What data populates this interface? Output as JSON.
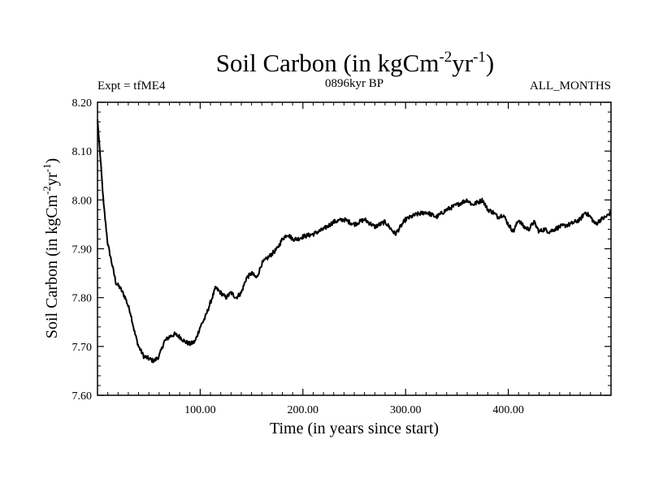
{
  "chart_data": {
    "type": "line",
    "title_main": "Soil Carbon (in kgCm",
    "title_sup1": "-2",
    "title_mid": "yr",
    "title_sup2": "-1",
    "title_end": ")",
    "subtitle_left": "Expt = tfME4",
    "subtitle_center": "0896kyr BP",
    "subtitle_right": "ALL_MONTHS",
    "xlabel": "Time (in years since start)",
    "ylabel_main": "Soil Carbon (in kgCm",
    "ylabel_sup1": "-2",
    "ylabel_mid": "yr",
    "ylabel_sup2": "-1",
    "ylabel_end": ")",
    "xlim": [
      0,
      500
    ],
    "ylim": [
      7.6,
      8.2
    ],
    "x_ticks": [
      100,
      200,
      300,
      400
    ],
    "x_tick_labels": [
      "100.00",
      "200.00",
      "300.00",
      "400.00"
    ],
    "y_ticks": [
      7.6,
      7.7,
      7.8,
      7.9,
      8.0,
      8.1,
      8.2
    ],
    "y_tick_labels": [
      "7.60",
      "7.70",
      "7.80",
      "7.90",
      "8.00",
      "8.10",
      "8.20"
    ],
    "grid": false,
    "series": [
      {
        "name": "Soil Carbon",
        "x": [
          0,
          3,
          6,
          10,
          14,
          18,
          22,
          27,
          32,
          36,
          40,
          45,
          50,
          55,
          60,
          65,
          70,
          75,
          80,
          85,
          90,
          95,
          100,
          105,
          110,
          115,
          120,
          125,
          130,
          135,
          140,
          145,
          150,
          155,
          160,
          165,
          170,
          175,
          180,
          185,
          190,
          195,
          200,
          210,
          220,
          230,
          240,
          250,
          260,
          270,
          280,
          290,
          300,
          310,
          320,
          330,
          340,
          350,
          355,
          360,
          365,
          370,
          375,
          380,
          385,
          390,
          395,
          400,
          405,
          410,
          415,
          420,
          425,
          430,
          435,
          440,
          450,
          460,
          470,
          475,
          480,
          485,
          490,
          495,
          500
        ],
        "values": [
          8.165,
          8.08,
          7.99,
          7.91,
          7.87,
          7.83,
          7.82,
          7.8,
          7.77,
          7.73,
          7.7,
          7.68,
          7.675,
          7.67,
          7.68,
          7.71,
          7.72,
          7.725,
          7.72,
          7.71,
          7.705,
          7.71,
          7.74,
          7.76,
          7.79,
          7.82,
          7.81,
          7.8,
          7.81,
          7.8,
          7.81,
          7.84,
          7.85,
          7.84,
          7.87,
          7.88,
          7.89,
          7.9,
          7.92,
          7.93,
          7.92,
          7.92,
          7.925,
          7.93,
          7.94,
          7.955,
          7.96,
          7.95,
          7.96,
          7.945,
          7.955,
          7.93,
          7.96,
          7.97,
          7.975,
          7.965,
          7.98,
          7.99,
          7.995,
          8.0,
          7.99,
          7.995,
          8.0,
          7.98,
          7.975,
          7.965,
          7.97,
          7.95,
          7.935,
          7.96,
          7.945,
          7.94,
          7.955,
          7.935,
          7.94,
          7.935,
          7.945,
          7.95,
          7.96,
          7.975,
          7.965,
          7.95,
          7.96,
          7.965,
          7.975
        ]
      }
    ]
  }
}
